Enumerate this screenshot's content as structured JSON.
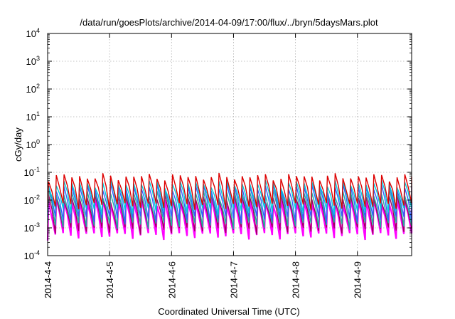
{
  "chart_data": {
    "type": "line",
    "title": "/data/run/goesPlots/archive/2014-04-09/17:00/flux/../bryn/5daysMars.plot",
    "xlabel": "Coordinated Universal Time (UTC)",
    "ylabel": "cGy/day",
    "yscale": "log",
    "ylim": [
      0.0001,
      10000
    ],
    "y_ticks": [
      {
        "base": "10",
        "exp": "-4"
      },
      {
        "base": "10",
        "exp": "-3"
      },
      {
        "base": "10",
        "exp": "-2"
      },
      {
        "base": "10",
        "exp": "-1"
      },
      {
        "base": "10",
        "exp": "0"
      },
      {
        "base": "10",
        "exp": "1"
      },
      {
        "base": "10",
        "exp": "2"
      },
      {
        "base": "10",
        "exp": "3"
      },
      {
        "base": "10",
        "exp": "4"
      }
    ],
    "x_start": "2014-04-04 00:00",
    "x_end": "2014-04-09 21:00",
    "x_ticks": [
      "2014-4-4",
      "2014-4-5",
      "2014-4-6",
      "2014-4-7",
      "2014-4-8",
      "2014-4-9"
    ],
    "grid": true,
    "legend": "none",
    "cycles_per_day": 8,
    "series": [
      {
        "color": "#ff00ff",
        "min": 0.0005,
        "max": 0.009
      },
      {
        "color": "#a00060",
        "min": 0.0008,
        "max": 0.012
      },
      {
        "color": "#20b0a0",
        "min": 0.0012,
        "max": 0.018
      },
      {
        "color": "#3060ff",
        "min": 0.002,
        "max": 0.03
      },
      {
        "color": "#00ccdd",
        "min": 0.004,
        "max": 0.04
      },
      {
        "color": "#dd0000",
        "min": 0.006,
        "max": 0.07
      }
    ]
  }
}
